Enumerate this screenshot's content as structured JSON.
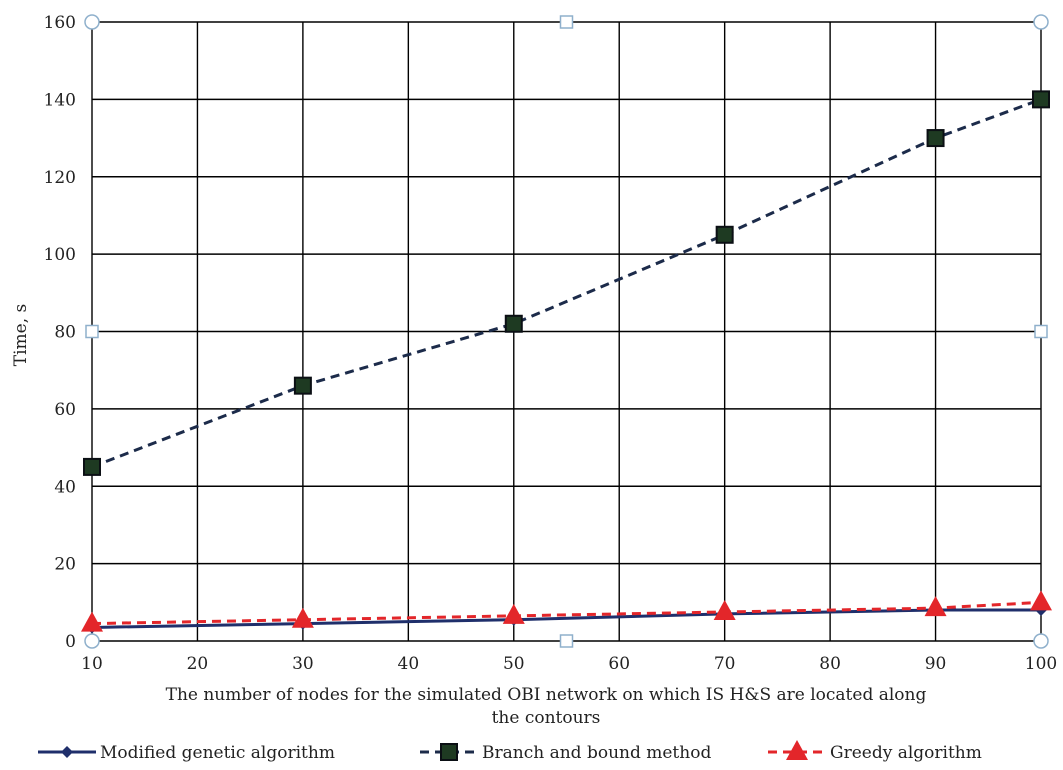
{
  "chart_data": {
    "type": "line",
    "title": "",
    "xlabel_lines": [
      "The number of nodes for the simulated OBI network on which IS H&S are located along",
      "the contours"
    ],
    "ylabel": "Time, s",
    "xlim": [
      10,
      100
    ],
    "ylim": [
      0,
      160
    ],
    "x_ticks": [
      10,
      20,
      30,
      40,
      50,
      60,
      70,
      80,
      90,
      100
    ],
    "y_ticks": [
      0,
      20,
      40,
      60,
      80,
      100,
      120,
      140,
      160
    ],
    "grid": true,
    "legend_position": "bottom",
    "x": [
      10,
      30,
      50,
      70,
      90,
      100
    ],
    "series": [
      {
        "name": "Modified genetic algorithm",
        "values": [
          3.5,
          4.5,
          5.5,
          7,
          8,
          8
        ],
        "color": "#1f2f6b",
        "marker": "diamond",
        "line": "solid"
      },
      {
        "name": "Branch and bound method",
        "values": [
          45,
          66,
          82,
          105,
          130,
          140
        ],
        "color": "#1c2b4a",
        "marker_fill": "#1e3a22",
        "marker": "square",
        "line": "dashed"
      },
      {
        "name": "Greedy algorithm",
        "values": [
          4.5,
          5.5,
          6.5,
          7.5,
          8.5,
          10
        ],
        "color": "#e3262a",
        "marker": "triangle",
        "line": "dashed"
      }
    ]
  }
}
